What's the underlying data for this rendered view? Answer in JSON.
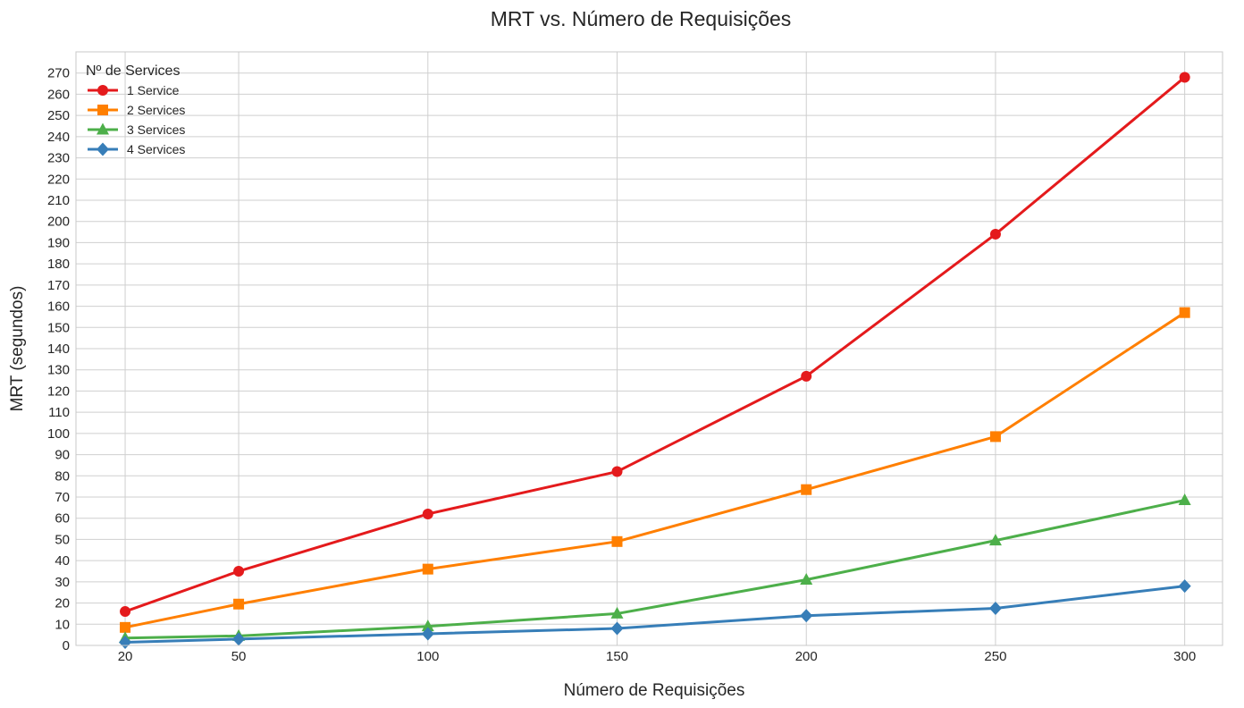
{
  "chart_data": {
    "type": "line",
    "title": "MRT vs. Número de Requisições",
    "xlabel": "Número de Requisições",
    "ylabel": "MRT (segundos)",
    "x": [
      20,
      50,
      100,
      150,
      200,
      250,
      300
    ],
    "x_ticks": [
      "20",
      "50",
      "100",
      "150",
      "200",
      "250",
      "300"
    ],
    "xlim": [
      7,
      310
    ],
    "ylim": [
      0,
      280
    ],
    "y_ticks": [
      0,
      10,
      20,
      30,
      40,
      50,
      60,
      70,
      80,
      90,
      100,
      110,
      120,
      130,
      140,
      150,
      160,
      170,
      180,
      190,
      200,
      210,
      220,
      230,
      240,
      250,
      260,
      270
    ],
    "grid": true,
    "legend": {
      "title": "Nº de Services",
      "position": "top-left"
    },
    "series": [
      {
        "name": "1 Service",
        "color": "#e41a1c",
        "marker": "circle",
        "values": [
          16,
          35,
          62,
          82,
          127,
          194,
          268
        ]
      },
      {
        "name": "2 Services",
        "color": "#ff7f00",
        "marker": "square",
        "values": [
          8.5,
          19.5,
          36,
          49,
          73.5,
          98.5,
          157
        ]
      },
      {
        "name": "3 Services",
        "color": "#4daf4a",
        "marker": "triangle",
        "values": [
          3.5,
          4.5,
          9,
          15,
          31,
          49.5,
          68.5
        ]
      },
      {
        "name": "4 Services",
        "color": "#377eb8",
        "marker": "diamond",
        "values": [
          1.5,
          3,
          5.5,
          8,
          14,
          17.5,
          28
        ]
      }
    ]
  }
}
